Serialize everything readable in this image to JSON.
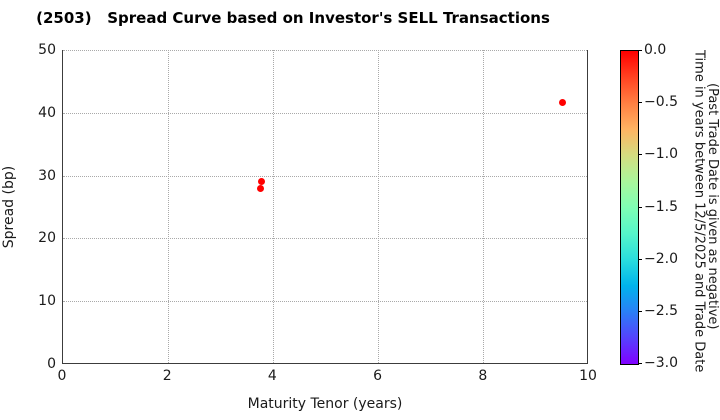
{
  "chart_data": {
    "type": "scatter",
    "title": "(2503)   Spread Curve based on Investor's SELL Transactions",
    "xlabel": "Maturity Tenor (years)",
    "ylabel": "Spread (bp)",
    "xlim": [
      0,
      10
    ],
    "ylim": [
      0,
      50
    ],
    "xticks": [
      0,
      2,
      4,
      6,
      8,
      10
    ],
    "yticks": [
      0,
      10,
      20,
      30,
      40,
      50
    ],
    "grid": "dotted",
    "legend": "none",
    "marker_color": "#ff0000",
    "points": [
      {
        "x": 3.78,
        "y": 29.0,
        "time_years": 0.0
      },
      {
        "x": 3.75,
        "y": 28.0,
        "time_years": 0.0
      },
      {
        "x": 9.49,
        "y": 41.6,
        "time_years": 0.0
      }
    ],
    "colorbar": {
      "label_line1": "Time in years between 12/5/2025 and Trade Date",
      "label_line2": "(Past Trade Date is given as negative)",
      "tick_labels": [
        "0.0",
        "−0.5",
        "−1.0",
        "−1.5",
        "−2.0",
        "−2.5",
        "−3.0"
      ],
      "max": 0.0,
      "min": -3.0,
      "colormap": "rainbow",
      "gradient_stops": [
        {
          "pos": 0.0,
          "color": "#ff0000"
        },
        {
          "pos": 0.0833,
          "color": "#ff4221"
        },
        {
          "pos": 0.1667,
          "color": "#ff7f42"
        },
        {
          "pos": 0.25,
          "color": "#ffb462"
        },
        {
          "pos": 0.3333,
          "color": "#d4dd80"
        },
        {
          "pos": 0.4167,
          "color": "#aaf69b"
        },
        {
          "pos": 0.5,
          "color": "#7fffb4"
        },
        {
          "pos": 0.5833,
          "color": "#55f6ca"
        },
        {
          "pos": 0.6667,
          "color": "#2adddd"
        },
        {
          "pos": 0.75,
          "color": "#00b4ec"
        },
        {
          "pos": 0.8333,
          "color": "#2a7ff6"
        },
        {
          "pos": 0.9167,
          "color": "#5542fd"
        },
        {
          "pos": 1.0,
          "color": "#8000ff"
        }
      ]
    }
  }
}
